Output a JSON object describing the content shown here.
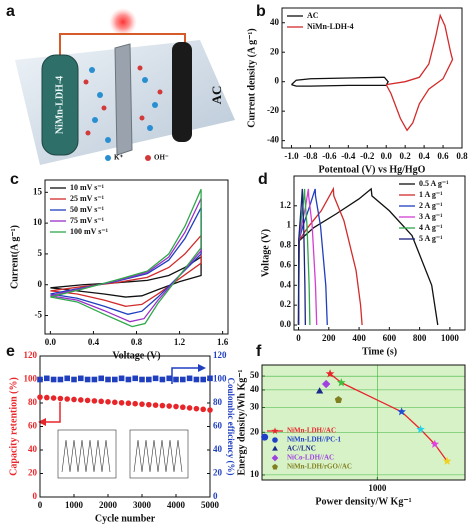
{
  "schematic": {
    "letter": "a",
    "left_electrode": "NiMn-LDH-4",
    "right_electrode": "AC",
    "ion_1": "K⁺",
    "ion_2": "OH⁻"
  },
  "chart_data": [
    {
      "panel": "b",
      "type": "line",
      "xlabel": "Potentoal (V) vs Hg/HgO",
      "ylabel": "Current density (A g⁻¹)",
      "xlim": [
        -1.1,
        0.8
      ],
      "ylim": [
        -45,
        50
      ],
      "xticks": [
        {
          "value": -1.0,
          "label": "-1.0"
        },
        -0.8,
        -0.6,
        -0.4,
        -0.2,
        {
          "value": 0,
          "label": "0.0"
        },
        0.2,
        0.4,
        0.6,
        0.8
      ],
      "yticks": [
        -40,
        -20,
        0,
        20,
        40
      ],
      "legend": "upper left",
      "series": [
        {
          "name": "AC",
          "color": "#111111",
          "x": [
            -1.0,
            -0.95,
            -0.8,
            -0.4,
            -0.02,
            0.02,
            0.0,
            -0.4,
            -0.8,
            -0.95,
            -1.0
          ],
          "values": [
            -2,
            1,
            2,
            2.5,
            3,
            0,
            -2.5,
            -2.5,
            -3,
            -3,
            -2
          ]
        },
        {
          "name": "NiMn-LDH-4",
          "color": "#d22b2b",
          "x": [
            0.0,
            0.2,
            0.35,
            0.45,
            0.52,
            0.57,
            0.62,
            0.68,
            0.7,
            0.6,
            0.45,
            0.35,
            0.28,
            0.22,
            0.15,
            0.05,
            0.0
          ],
          "values": [
            -2,
            0,
            3,
            12,
            30,
            45,
            38,
            20,
            15,
            2,
            -5,
            -15,
            -28,
            -33,
            -25,
            -8,
            -2
          ]
        }
      ]
    },
    {
      "panel": "c",
      "type": "line",
      "xlabel": "Voltage (V)",
      "ylabel": "Current(A g⁻¹)",
      "xlim": [
        -0.05,
        1.65
      ],
      "ylim": [
        -8,
        17
      ],
      "xticks": [
        {
          "value": 0,
          "label": "0.0"
        },
        0.4,
        0.8,
        1.2,
        1.6
      ],
      "yticks": [
        -5,
        0,
        5,
        10,
        15
      ],
      "legend": "upper left",
      "series": [
        {
          "name": "10 mV s⁻¹",
          "color": "#111111",
          "x": [
            0,
            0.3,
            0.6,
            0.9,
            1.1,
            1.25,
            1.4,
            1.4,
            1.2,
            1.0,
            0.85,
            0.7,
            0.5,
            0.25,
            0
          ],
          "values": [
            -0.5,
            0,
            0.3,
            0.7,
            1.5,
            2.8,
            4.5,
            1.5,
            0.5,
            -0.8,
            -1.8,
            -2,
            -1.5,
            -1,
            -0.5
          ]
        },
        {
          "name": "25 mV s⁻¹",
          "color": "#d22b2b",
          "x": [
            0,
            0.3,
            0.6,
            0.9,
            1.1,
            1.25,
            1.4,
            1.4,
            1.2,
            1.0,
            0.85,
            0.7,
            0.5,
            0.25,
            0
          ],
          "values": [
            -1,
            -0.3,
            0.3,
            1.2,
            2.8,
            5,
            8,
            3.5,
            1,
            -1.5,
            -3.2,
            -3.5,
            -2.5,
            -1.5,
            -1
          ]
        },
        {
          "name": "50 mV s⁻¹",
          "color": "#1f3fbf",
          "x": [
            0,
            0.3,
            0.6,
            0.9,
            1.1,
            1.25,
            1.4,
            1.4,
            1.2,
            1.0,
            0.85,
            0.72,
            0.5,
            0.25,
            0
          ],
          "values": [
            -1.5,
            -0.5,
            0.5,
            1.8,
            4,
            7.5,
            12.5,
            5,
            1.5,
            -2,
            -4.3,
            -4.8,
            -3.5,
            -2.2,
            -1.5
          ]
        },
        {
          "name": "75 mV s⁻¹",
          "color": "#9b30c9",
          "x": [
            0,
            0.3,
            0.6,
            0.9,
            1.1,
            1.25,
            1.4,
            1.4,
            1.2,
            1.0,
            0.87,
            0.74,
            0.5,
            0.25,
            0
          ],
          "values": [
            -1.8,
            -0.6,
            0.6,
            2,
            4.5,
            8.5,
            14,
            5.5,
            1.5,
            -2.5,
            -5.5,
            -6,
            -4.2,
            -2.5,
            -1.8
          ]
        },
        {
          "name": "100 mV s⁻¹",
          "color": "#2fa84a",
          "x": [
            0,
            0.3,
            0.6,
            0.9,
            1.1,
            1.25,
            1.4,
            1.4,
            1.2,
            1.0,
            0.88,
            0.76,
            0.5,
            0.25,
            0
          ],
          "values": [
            -2,
            -0.7,
            0.7,
            2.2,
            5,
            9.5,
            15.5,
            6,
            1.5,
            -3,
            -6.3,
            -6.8,
            -4.8,
            -2.8,
            -2
          ]
        }
      ]
    },
    {
      "panel": "d",
      "type": "line",
      "xlabel": "Time (s)",
      "ylabel": "Voltage (V)",
      "xlim": [
        -30,
        1100
      ],
      "ylim": [
        -0.05,
        1.5
      ],
      "xticks": [
        0,
        200,
        400,
        600,
        800,
        1000
      ],
      "yticks": [
        {
          "value": 0,
          "label": "0.0"
        },
        0.2,
        0.4,
        0.6,
        0.8,
        1.0,
        1.2
      ],
      "legend": "upper right",
      "series": [
        {
          "name": "0.5 A g⁻¹",
          "color": "#111111",
          "x": [
            0,
            5,
            100,
            250,
            400,
            480,
            485,
            600,
            750,
            880,
            920
          ],
          "values": [
            0,
            0.85,
            0.98,
            1.12,
            1.27,
            1.37,
            1.3,
            1.15,
            0.9,
            0.4,
            0
          ]
        },
        {
          "name": "1 A g⁻¹",
          "color": "#d22b2b",
          "x": [
            0,
            3,
            60,
            150,
            230,
            233,
            300,
            380,
            410,
            420
          ],
          "values": [
            0,
            0.85,
            0.98,
            1.15,
            1.37,
            1.3,
            1.05,
            0.55,
            0.2,
            0
          ]
        },
        {
          "name": "2 A g⁻¹",
          "color": "#1f3fbf",
          "x": [
            0,
            2,
            30,
            70,
            110,
            112,
            145,
            180,
            190
          ],
          "values": [
            0,
            0.85,
            1.0,
            1.18,
            1.37,
            1.3,
            1.0,
            0.4,
            0
          ]
        },
        {
          "name": "3 A g⁻¹",
          "color": "#d23fd2",
          "x": [
            0,
            2,
            20,
            45,
            65,
            67,
            90,
            112,
            120
          ],
          "values": [
            0,
            0.85,
            1.0,
            1.18,
            1.37,
            1.3,
            1.0,
            0.4,
            0
          ]
        },
        {
          "name": "4 A g⁻¹",
          "color": "#2fa84a",
          "x": [
            0,
            1,
            12,
            28,
            40,
            41,
            56,
            70,
            75
          ],
          "values": [
            0,
            0.85,
            1.0,
            1.18,
            1.37,
            1.3,
            1.0,
            0.4,
            0
          ]
        },
        {
          "name": "5 A g⁻¹",
          "color": "#1a237e",
          "x": [
            0,
            1,
            8,
            17,
            25,
            26,
            34,
            42,
            45
          ],
          "values": [
            0,
            0.85,
            1.0,
            1.18,
            1.37,
            1.3,
            1.0,
            0.4,
            0
          ]
        }
      ]
    },
    {
      "panel": "e",
      "type": "scatter",
      "xlabel": "Cycle number",
      "ylabel": "Capacity retention (%)",
      "y2label": "Coulombic efficiency (%)",
      "ylabel_color": "#e8262a",
      "y2label_color": "#1f3fbf",
      "xlim": [
        0,
        5000
      ],
      "ylim": [
        0,
        120
      ],
      "y2lim": [
        0,
        120
      ],
      "xticks": [
        0,
        1000,
        2000,
        3000,
        4000,
        5000
      ],
      "yticks": [
        0,
        20,
        40,
        60,
        80,
        100,
        120
      ],
      "y2ticks": [
        0,
        20,
        40,
        60,
        80,
        100,
        120
      ],
      "x": [
        0,
        200,
        400,
        600,
        800,
        1000,
        1200,
        1400,
        1600,
        1800,
        2000,
        2200,
        2400,
        2600,
        2800,
        3000,
        3200,
        3400,
        3600,
        3800,
        4000,
        4200,
        4400,
        4600,
        4800,
        5000
      ],
      "series": [
        {
          "color": "#e8262a",
          "marker": "circle",
          "values": [
            85,
            84.6,
            84.2,
            83.8,
            83.4,
            83,
            82.6,
            82.2,
            81.8,
            81.4,
            81,
            80.6,
            80.2,
            79.8,
            79.4,
            79,
            78.6,
            78.2,
            77.8,
            77.4,
            77,
            76.4,
            75.8,
            75.2,
            74.6,
            74
          ]
        },
        {
          "color": "#1f3fbf",
          "marker": "square",
          "axis": "y2",
          "values": [
            100,
            101,
            100,
            100,
            101,
            100,
            101,
            100,
            100,
            101,
            100,
            100,
            101,
            100,
            101,
            100,
            100,
            101,
            100,
            101,
            100,
            100,
            101,
            100,
            100,
            101
          ]
        }
      ]
    },
    {
      "panel": "f",
      "type": "scatter",
      "xlabel": "Power density/W Kg⁻¹",
      "ylabel": "Energy density/Wh Kg⁻¹",
      "xscale": "log",
      "yscale": "log",
      "xlim": [
        120,
        5000
      ],
      "ylim": [
        9.2,
        60
      ],
      "xticks": [
        1000
      ],
      "yticks": [
        10,
        20,
        30,
        40,
        50
      ],
      "grid": true,
      "legend": "lower left",
      "series": [
        {
          "name": "NiMn-LDH//AC",
          "color": "#e8262a",
          "marker": "star",
          "line": true,
          "x": [
            419,
            515,
            1560,
            2210,
            2870,
            3600
          ],
          "values": [
            52,
            45,
            28,
            21,
            16.5,
            12.5
          ],
          "point_colors": [
            "#e8262a",
            "#3cc13c",
            "#1f4fd0",
            "#22d3e6",
            "#e040e0",
            "#f0d020"
          ]
        },
        {
          "name": "NiMn-LDH//PC-1",
          "color": "#1e40c8",
          "marker": "circle",
          "x": [
            126
          ],
          "values": [
            18.5
          ]
        },
        {
          "name": "AC//LNC",
          "color": "#1a2a8a",
          "marker": "triangle",
          "x": [
            346
          ],
          "values": [
            39
          ]
        },
        {
          "name": "NiCo-LDH//AC",
          "color": "#a040e0",
          "marker": "diamond",
          "x": [
            390
          ],
          "values": [
            44
          ]
        },
        {
          "name": "NiMn-LDH/rGO//AC",
          "color": "#808020",
          "marker": "pentagon",
          "x": [
            489
          ],
          "values": [
            34
          ]
        }
      ]
    }
  ]
}
